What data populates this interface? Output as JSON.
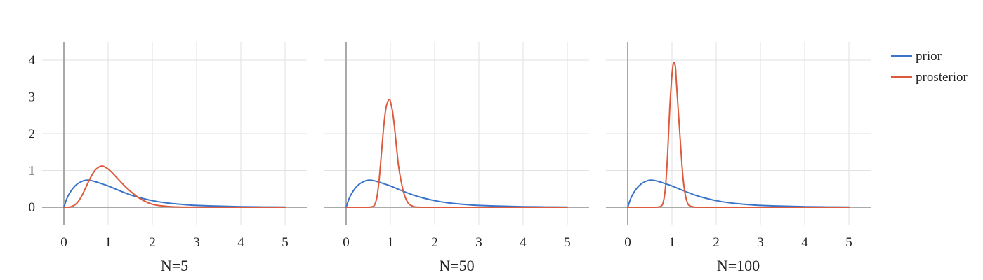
{
  "chart_data": {
    "type": "line",
    "grid": true,
    "legend_placement": "top-right",
    "x_ticks": [
      "0",
      "1",
      "2",
      "3",
      "4",
      "5"
    ],
    "y_ticks": [
      "0",
      "1",
      "2",
      "3",
      "4"
    ],
    "xlim": [
      -0.5,
      5.5
    ],
    "ylim": [
      -0.5,
      4.5
    ],
    "colors": {
      "prior": "#3a74c8",
      "posterior": "#dd5a3c"
    },
    "legend": [
      "prior",
      "prosterior"
    ],
    "panels": [
      {
        "title": "N=5",
        "series": [
          {
            "name": "prior",
            "x": [
              0,
              0.05,
              0.1,
              0.2,
              0.3,
              0.4,
              0.5,
              0.6,
              0.7,
              0.8,
              1.0,
              1.2,
              1.5,
              1.75,
              2.0,
              2.25,
              2.5,
              2.75,
              3.0,
              3.5,
              4.0,
              4.5,
              5.0
            ],
            "y": [
              0,
              0.18,
              0.32,
              0.51,
              0.63,
              0.7,
              0.735,
              0.73,
              0.7,
              0.66,
              0.58,
              0.48,
              0.34,
              0.25,
              0.18,
              0.13,
              0.095,
              0.07,
              0.05,
              0.03,
              0.015,
              0.008,
              0.004
            ]
          },
          {
            "name": "prosterior",
            "x": [
              0,
              0.1,
              0.2,
              0.3,
              0.4,
              0.5,
              0.6,
              0.7,
              0.8,
              0.85,
              0.9,
              1.0,
              1.1,
              1.2,
              1.4,
              1.6,
              1.8,
              2.0,
              2.2,
              2.5,
              3.0,
              4.0,
              5.0
            ],
            "y": [
              0,
              0.0,
              0.03,
              0.12,
              0.3,
              0.55,
              0.8,
              1.0,
              1.1,
              1.12,
              1.11,
              1.04,
              0.93,
              0.8,
              0.55,
              0.34,
              0.18,
              0.08,
              0.04,
              0.01,
              0.002,
              0.0,
              0.0
            ]
          }
        ]
      },
      {
        "title": "N=50",
        "series": [
          {
            "name": "prior",
            "x": [
              0,
              0.05,
              0.1,
              0.2,
              0.3,
              0.4,
              0.5,
              0.6,
              0.7,
              0.8,
              1.0,
              1.2,
              1.5,
              1.75,
              2.0,
              2.25,
              2.5,
              2.75,
              3.0,
              3.5,
              4.0,
              4.5,
              5.0
            ],
            "y": [
              0,
              0.18,
              0.32,
              0.51,
              0.63,
              0.7,
              0.735,
              0.73,
              0.7,
              0.66,
              0.58,
              0.48,
              0.34,
              0.25,
              0.18,
              0.13,
              0.095,
              0.07,
              0.05,
              0.03,
              0.015,
              0.008,
              0.004
            ]
          },
          {
            "name": "prosterior",
            "x": [
              0,
              0.5,
              0.6,
              0.65,
              0.7,
              0.75,
              0.8,
              0.85,
              0.9,
              0.95,
              0.98,
              1.0,
              1.05,
              1.1,
              1.15,
              1.2,
              1.3,
              1.4,
              1.5,
              1.6,
              2.0,
              3.0,
              5.0
            ],
            "y": [
              0,
              0.0,
              0.02,
              0.08,
              0.3,
              0.8,
              1.5,
              2.2,
              2.7,
              2.9,
              2.93,
              2.88,
              2.6,
              2.1,
              1.5,
              1.0,
              0.4,
              0.12,
              0.03,
              0.005,
              0.0,
              0.0,
              0.0
            ]
          }
        ]
      },
      {
        "title": "N=100",
        "series": [
          {
            "name": "prior",
            "x": [
              0,
              0.05,
              0.1,
              0.2,
              0.3,
              0.4,
              0.5,
              0.6,
              0.7,
              0.8,
              1.0,
              1.2,
              1.5,
              1.75,
              2.0,
              2.25,
              2.5,
              2.75,
              3.0,
              3.5,
              4.0,
              4.5,
              5.0
            ],
            "y": [
              0,
              0.18,
              0.32,
              0.51,
              0.63,
              0.7,
              0.735,
              0.73,
              0.7,
              0.66,
              0.58,
              0.48,
              0.34,
              0.25,
              0.18,
              0.13,
              0.095,
              0.07,
              0.05,
              0.03,
              0.015,
              0.008,
              0.004
            ]
          },
          {
            "name": "prosterior",
            "x": [
              0,
              0.6,
              0.7,
              0.75,
              0.8,
              0.85,
              0.9,
              0.95,
              1.0,
              1.03,
              1.05,
              1.08,
              1.1,
              1.15,
              1.2,
              1.25,
              1.3,
              1.35,
              1.4,
              1.5,
              1.6,
              2.0,
              5.0
            ],
            "y": [
              0,
              0.0,
              0.01,
              0.03,
              0.12,
              0.5,
              1.4,
              2.7,
              3.6,
              3.9,
              3.93,
              3.8,
              3.4,
              2.5,
              1.6,
              0.8,
              0.35,
              0.12,
              0.04,
              0.005,
              0.0,
              0.0,
              0.0
            ]
          }
        ]
      }
    ]
  }
}
